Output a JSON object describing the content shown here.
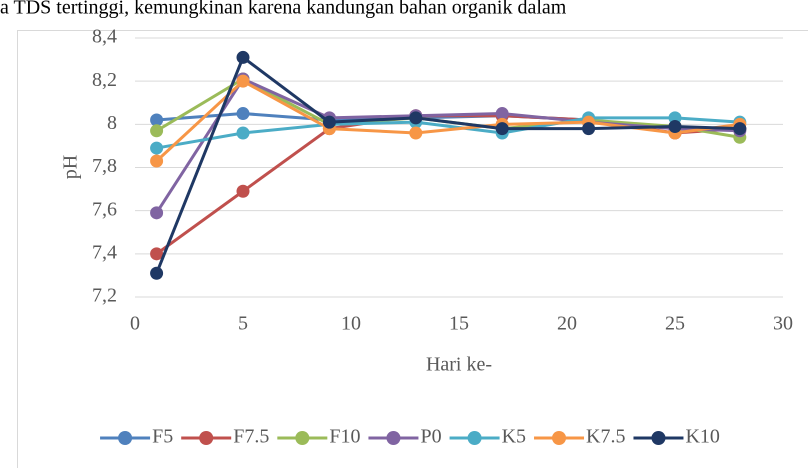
{
  "chart_data": {
    "type": "line",
    "annotation": "a TDS tertinggi, kemungkinan karena kandungan bahan organik dalam",
    "x_label": "Hari ke-",
    "y_label": "pH",
    "x": [
      1,
      5,
      9,
      13,
      17,
      21,
      25,
      28
    ],
    "series": [
      {
        "name": "F5",
        "color": "#4f81bd",
        "values": [
          8.02,
          8.05,
          8.02,
          8.03,
          8.04,
          8.02,
          7.98,
          7.98
        ]
      },
      {
        "name": "F7.5",
        "color": "#c0504d",
        "values": [
          7.4,
          7.69,
          7.98,
          8.04,
          8.04,
          8.02,
          7.96,
          7.98
        ]
      },
      {
        "name": "F10",
        "color": "#9bbb59",
        "values": [
          7.97,
          8.21,
          8.0,
          8.03,
          7.98,
          8.02,
          7.99,
          7.94
        ]
      },
      {
        "name": "P0",
        "color": "#8064a2",
        "values": [
          7.59,
          8.21,
          8.03,
          8.04,
          8.05,
          8.01,
          7.98,
          7.97
        ]
      },
      {
        "name": "K5",
        "color": "#4bacc6",
        "values": [
          7.89,
          7.96,
          8.0,
          8.01,
          7.96,
          8.03,
          8.03,
          8.01
        ]
      },
      {
        "name": "K7.5",
        "color": "#f79646",
        "values": [
          7.83,
          8.2,
          7.98,
          7.96,
          8.0,
          8.01,
          7.96,
          8.0
        ]
      },
      {
        "name": "K10",
        "color": "#1f3864",
        "values": [
          7.31,
          8.31,
          8.01,
          8.03,
          7.98,
          7.98,
          7.99,
          7.98
        ]
      }
    ],
    "xlim": [
      0,
      30
    ],
    "xticks": [
      0,
      5,
      10,
      15,
      20,
      25,
      30
    ],
    "ylim": [
      7.2,
      8.4
    ],
    "yticks": [
      {
        "value": 7.2,
        "label": "7,2"
      },
      {
        "value": 7.4,
        "label": "7,4"
      },
      {
        "value": 7.6,
        "label": "7,6"
      },
      {
        "value": 7.8,
        "label": "7,8"
      },
      8,
      {
        "value": 8.2,
        "label": "8,2"
      },
      {
        "value": 8.4,
        "label": "8,4"
      }
    ],
    "grid": true,
    "legend": "bottom"
  }
}
